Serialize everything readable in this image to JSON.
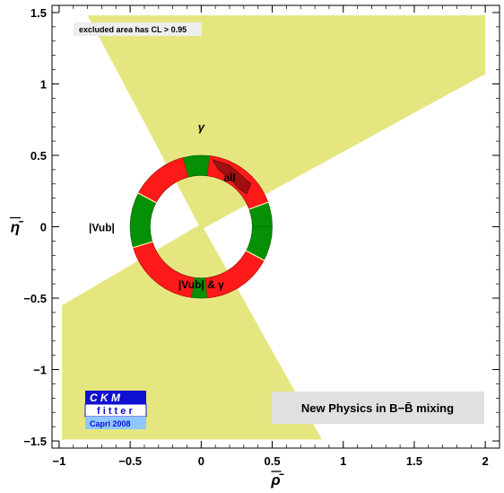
{
  "chart_data": {
    "type": "area",
    "xlabel": "ρ̄",
    "ylabel": "η̄",
    "xlim": [
      -1.05,
      2.1
    ],
    "ylim": [
      -1.55,
      1.55
    ],
    "xticks": [
      -1,
      -0.5,
      0,
      0.5,
      1,
      1.5,
      2
    ],
    "xtick_labels": [
      "−1",
      "−0.5",
      "0",
      "0.5",
      "1",
      "1.5",
      "2"
    ],
    "yticks": [
      -1.5,
      -1,
      -0.5,
      0,
      0.5,
      1,
      1.5
    ],
    "ytick_labels": [
      "−1.5",
      "−1",
      "−0.5",
      "0",
      "0.5",
      "1",
      "1.5"
    ],
    "grid": false,
    "regions": [
      {
        "label": "γ",
        "color": "#e6e681",
        "polygons": [
          [
            [
              -0.8,
              1.48
            ],
            [
              2.0,
              1.48
            ],
            [
              2.0,
              1.07
            ],
            [
              0.0,
              -0.02
            ]
          ],
          [
            [
              -0.98,
              -0.55
            ],
            [
              0.0,
              0.02
            ],
            [
              0.85,
              -1.49
            ],
            [
              -0.98,
              -1.49
            ]
          ]
        ]
      },
      {
        "label": "|V_ub|",
        "color": "#069006",
        "ring": {
          "center": [
            0.0,
            0.0
          ],
          "inner_radius": 0.36,
          "outer_radius": 0.5
        }
      },
      {
        "label": "|V_ub| & γ",
        "color": "#ff1a1a",
        "arcs_deg": [
          [
            105,
            152
          ],
          [
            20,
            83
          ],
          [
            197,
            262
          ],
          [
            -85,
            -28
          ]
        ]
      },
      {
        "label": "all",
        "color": "#a01010",
        "polygon": [
          [
            0.08,
            0.47
          ],
          [
            0.2,
            0.43
          ],
          [
            0.35,
            0.3
          ],
          [
            0.32,
            0.23
          ],
          [
            0.26,
            0.27
          ],
          [
            0.22,
            0.32
          ],
          [
            0.12,
            0.4
          ]
        ]
      }
    ],
    "annotations": [
      {
        "text": "γ",
        "x": 0.0,
        "y": 0.7
      },
      {
        "text": "all",
        "x": 0.2,
        "y": 0.35
      },
      {
        "text": "|Vub|",
        "x": -0.7,
        "y": 0.0
      },
      {
        "text": "|Vub| & γ",
        "x": 0.0,
        "y": -0.4
      }
    ],
    "note": "excluded area has CL > 0.95",
    "legend_text": "New Physics in B−B̄ mixing",
    "logo": {
      "line1": "C K M",
      "line2": "f i t t e r",
      "line3": "Capri 2008"
    }
  }
}
